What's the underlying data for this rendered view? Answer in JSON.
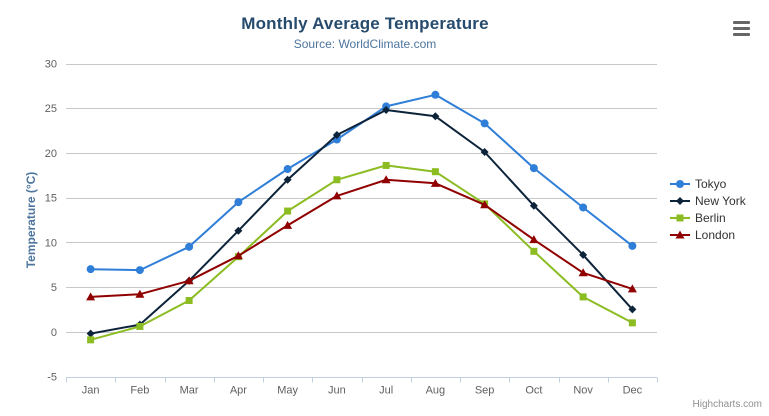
{
  "header": {
    "title": "Monthly Average Temperature",
    "subtitle": "Source: WorldClimate.com"
  },
  "credits_label": "Highcharts.com",
  "export_menu_icon": "hamburger-icon",
  "colors": {
    "title": "#274b6d",
    "subtitle": "#4d759e",
    "axis_title": "#4d759e",
    "tick_label": "#606060",
    "gridline": "#c8c8c8",
    "axis_line": "#c0d0e0",
    "legend_text": "#333333",
    "credits_text": "#909090"
  },
  "chart_data": {
    "type": "line",
    "title": "Monthly Average Temperature",
    "subtitle": "Source: WorldClimate.com",
    "xlabel": "",
    "ylabel": "Temperature (°C)",
    "ylim": [
      -5,
      30
    ],
    "yticks": [
      -5,
      0,
      5,
      10,
      15,
      20,
      25,
      30
    ],
    "grid": true,
    "legend_position": "right",
    "categories": [
      "Jan",
      "Feb",
      "Mar",
      "Apr",
      "May",
      "Jun",
      "Jul",
      "Aug",
      "Sep",
      "Oct",
      "Nov",
      "Dec"
    ],
    "series": [
      {
        "name": "Tokyo",
        "color": "#2f7ed8",
        "marker": "circle",
        "values": [
          7.0,
          6.9,
          9.5,
          14.5,
          18.2,
          21.5,
          25.2,
          26.5,
          23.3,
          18.3,
          13.9,
          9.6
        ]
      },
      {
        "name": "New York",
        "color": "#0d233a",
        "marker": "diamond",
        "values": [
          -0.2,
          0.8,
          5.7,
          11.3,
          17.0,
          22.0,
          24.8,
          24.1,
          20.1,
          14.1,
          8.6,
          2.5
        ]
      },
      {
        "name": "Berlin",
        "color": "#8bbc21",
        "marker": "square",
        "values": [
          -0.9,
          0.6,
          3.5,
          8.4,
          13.5,
          17.0,
          18.6,
          17.9,
          14.3,
          9.0,
          3.9,
          1.0
        ]
      },
      {
        "name": "London",
        "color": "#910000",
        "marker": "triangle",
        "values": [
          3.9,
          4.2,
          5.7,
          8.5,
          11.9,
          15.2,
          17.0,
          16.6,
          14.2,
          10.3,
          6.6,
          4.8
        ]
      }
    ]
  }
}
